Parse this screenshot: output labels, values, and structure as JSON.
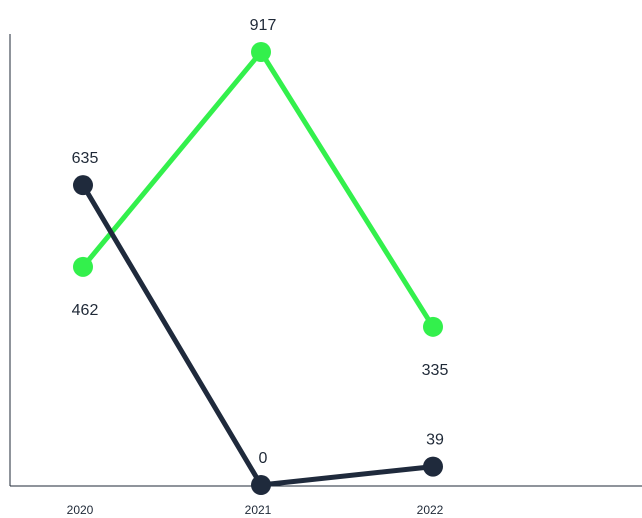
{
  "chart_data": {
    "type": "line",
    "categories": [
      "2020",
      "2021",
      "2022"
    ],
    "series": [
      {
        "values": [
          462,
          917,
          335
        ],
        "color": "#33f04c"
      },
      {
        "values": [
          635,
          0,
          39
        ],
        "color": "#1f2a3c"
      }
    ],
    "ylim": [
      0,
      1000
    ],
    "grid": false,
    "legend": "none",
    "axis_color": "#1f2937"
  }
}
